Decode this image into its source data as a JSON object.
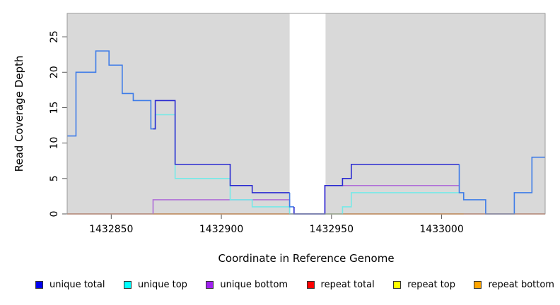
{
  "chart_data": {
    "type": "line",
    "subtype": "step-coverage-plot",
    "title": "",
    "xlabel": "Coordinate in Reference Genome",
    "ylabel": "Read Coverage Depth",
    "xlim": [
      1432830,
      1433047
    ],
    "ylim": [
      0,
      28.3
    ],
    "x_ticks": [
      1432850,
      1432900,
      1432950,
      1433000
    ],
    "y_ticks": [
      0,
      5,
      10,
      15,
      20,
      25
    ],
    "grid": false,
    "plot_bg": "#d9d9d9",
    "frame_color": "#999999",
    "tick_color": "#555555",
    "highlight_band": {
      "x_start": 1432931,
      "x_end": 1432947.3,
      "color": "#ffffff"
    },
    "legend_position": "bottom",
    "series": [
      {
        "name": "repeat top",
        "color": "#e8e84a",
        "steps": [
          [
            1432830,
            1433047,
            0
          ]
        ]
      },
      {
        "name": "repeat total",
        "color": "#d9536f",
        "steps": [
          [
            1432830,
            1433047,
            0
          ]
        ]
      },
      {
        "name": "repeat bottom",
        "color": "#ff9e2a",
        "steps": [
          [
            1432869,
            1433010,
            0
          ]
        ]
      },
      {
        "name": "unique bottom",
        "color": "#b06fd8",
        "steps": [
          [
            1432869,
            1432869,
            0
          ],
          [
            1432869,
            1432931,
            2
          ],
          [
            1432931,
            1432947,
            0
          ],
          [
            1432947,
            1433008,
            4
          ]
        ]
      },
      {
        "name": "unique top",
        "color": "#76e9e7",
        "steps": [
          [
            1432869,
            1432870,
            12
          ],
          [
            1432870,
            1432879,
            14
          ],
          [
            1432879,
            1432904,
            5
          ],
          [
            1432904,
            1432914,
            2
          ],
          [
            1432914,
            1432931,
            1
          ],
          [
            1432931,
            1432955,
            0
          ],
          [
            1432955,
            1432959,
            1
          ],
          [
            1432959,
            1433008,
            3
          ]
        ]
      },
      {
        "name": "unique total",
        "color": "#2b2bd1",
        "overlap_color": "#3e7ce8",
        "steps": [
          [
            1432830,
            1432834,
            11,
            "#3e7ce8"
          ],
          [
            1432834,
            1432843,
            20,
            "#3e7ce8"
          ],
          [
            1432843,
            1432849,
            23,
            "#3e7ce8"
          ],
          [
            1432849,
            1432855,
            21,
            "#3e7ce8"
          ],
          [
            1432855,
            1432860,
            17,
            "#3e7ce8"
          ],
          [
            1432860,
            1432868,
            16,
            "#3e7ce8"
          ],
          [
            1432868,
            1432869,
            12,
            "#3e7ce8"
          ],
          [
            1432869,
            1432870,
            12
          ],
          [
            1432870,
            1432879,
            16
          ],
          [
            1432879,
            1432904,
            7
          ],
          [
            1432904,
            1432914,
            4
          ],
          [
            1432914,
            1432931,
            3
          ],
          [
            1432931,
            1432933,
            1,
            "#3e7ce8"
          ],
          [
            1432933,
            1432947,
            0
          ],
          [
            1432947,
            1432955,
            4
          ],
          [
            1432955,
            1432959,
            5
          ],
          [
            1432959,
            1433008,
            7
          ],
          [
            1433008,
            1433010,
            3,
            "#3e7ce8"
          ],
          [
            1433010,
            1433020,
            2,
            "#3e7ce8"
          ],
          [
            1433020,
            1433033,
            0,
            "#3e7ce8"
          ],
          [
            1433033,
            1433041,
            3,
            "#3e7ce8"
          ],
          [
            1433041,
            1433047,
            8,
            "#3e7ce8"
          ]
        ]
      }
    ],
    "legend": [
      {
        "label": "unique total",
        "color": "#0000ee"
      },
      {
        "label": "unique top",
        "color": "#00ffff"
      },
      {
        "label": "unique bottom",
        "color": "#a020f0"
      },
      {
        "label": "repeat total",
        "color": "#ff0000"
      },
      {
        "label": "repeat top",
        "color": "#ffff00"
      },
      {
        "label": "repeat bottom",
        "color": "#ffa500"
      }
    ]
  }
}
